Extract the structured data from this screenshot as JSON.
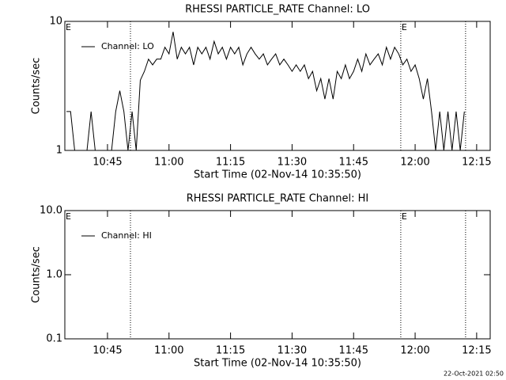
{
  "chart_data": [
    {
      "type": "line",
      "title": "RHESSI PARTICLE_RATE Channel: LO",
      "x_label": "Start Time (02-Nov-14 10:35:50)",
      "y_label": "Counts/sec",
      "ylog": true,
      "ylim": [
        1,
        10
      ],
      "yticks": [
        1,
        10
      ],
      "xlim": [
        634.6,
        738.3
      ],
      "xticks": [
        {
          "value": 645,
          "label": "10:45"
        },
        {
          "value": 660,
          "label": "11:00"
        },
        {
          "value": 675,
          "label": "11:15"
        },
        {
          "value": 690,
          "label": "11:30"
        },
        {
          "value": 705,
          "label": "11:45"
        },
        {
          "value": 720,
          "label": "12:00"
        },
        {
          "value": 735,
          "label": "12:15"
        }
      ],
      "vlines": [
        650.6,
        716.5,
        732.3
      ],
      "annotations": [
        {
          "text": "E",
          "x": 634.6
        },
        {
          "text": "E",
          "x": 716.5
        }
      ],
      "x": [
        635,
        636,
        637,
        638,
        639,
        640,
        641,
        642,
        643,
        644,
        645,
        646,
        647,
        648,
        649,
        650,
        651,
        652,
        653,
        654,
        655,
        656,
        657,
        658,
        659,
        660,
        661,
        662,
        663,
        664,
        665,
        666,
        667,
        668,
        669,
        670,
        671,
        672,
        673,
        674,
        675,
        676,
        677,
        678,
        679,
        680,
        681,
        682,
        683,
        684,
        685,
        686,
        687,
        688,
        689,
        690,
        691,
        692,
        693,
        694,
        695,
        696,
        697,
        698,
        699,
        700,
        701,
        702,
        703,
        704,
        705,
        706,
        707,
        708,
        709,
        710,
        711,
        712,
        713,
        714,
        715,
        716,
        717,
        718,
        719,
        720,
        721,
        722,
        723,
        724,
        725,
        726,
        727,
        728,
        729,
        730,
        731,
        732
      ],
      "series": [
        {
          "name": "Channel: LO",
          "color": "#000000",
          "values": [
            2.0,
            2.0,
            1,
            1,
            1,
            1,
            2.0,
            1,
            1,
            1,
            1,
            1,
            2.0,
            2.9,
            2.0,
            1,
            2.0,
            1,
            3.5,
            4.1,
            5.1,
            4.6,
            5.1,
            5.1,
            6.3,
            5.6,
            8.3,
            5.1,
            6.3,
            5.6,
            6.3,
            4.6,
            6.3,
            5.6,
            6.3,
            5.1,
            7.0,
            5.6,
            6.3,
            5.1,
            6.3,
            5.6,
            6.3,
            4.6,
            5.6,
            6.3,
            5.6,
            5.1,
            5.6,
            4.6,
            5.1,
            5.6,
            4.6,
            5.1,
            4.6,
            4.1,
            4.6,
            4.1,
            4.6,
            3.6,
            4.1,
            2.9,
            3.6,
            2.5,
            3.6,
            2.5,
            4.1,
            3.6,
            4.6,
            3.6,
            4.1,
            5.1,
            4.1,
            5.6,
            4.6,
            5.1,
            5.6,
            4.6,
            6.3,
            5.1,
            6.3,
            5.6,
            4.6,
            5.1,
            4.1,
            4.6,
            3.6,
            2.5,
            3.6,
            2.0,
            1,
            2.0,
            1,
            2.0,
            1,
            2.0,
            1,
            2.0
          ]
        }
      ]
    },
    {
      "type": "line",
      "title": "RHESSI PARTICLE_RATE Channel: HI",
      "x_label": "Start Time (02-Nov-14 10:35:50)",
      "y_label": "Counts/sec",
      "ylog": true,
      "ylim": [
        0.1,
        10
      ],
      "yticks": [
        {
          "value": 0.1,
          "label": "0.1"
        },
        {
          "value": 1,
          "label": "1.0"
        },
        {
          "value": 10,
          "label": "10.0"
        }
      ],
      "xlim": [
        634.6,
        738.3
      ],
      "xticks": [
        {
          "value": 645,
          "label": "10:45"
        },
        {
          "value": 660,
          "label": "11:00"
        },
        {
          "value": 675,
          "label": "11:15"
        },
        {
          "value": 690,
          "label": "11:30"
        },
        {
          "value": 705,
          "label": "11:45"
        },
        {
          "value": 720,
          "label": "12:00"
        },
        {
          "value": 735,
          "label": "12:15"
        }
      ],
      "vlines": [
        650.6,
        716.5,
        732.3
      ],
      "annotations": [
        {
          "text": "E",
          "x": 634.6
        },
        {
          "text": "E",
          "x": 716.5
        }
      ],
      "x": [],
      "series": [
        {
          "name": "Channel: HI",
          "color": "#000000",
          "values": []
        }
      ]
    }
  ],
  "footer": "22-Oct-2021 02:50"
}
